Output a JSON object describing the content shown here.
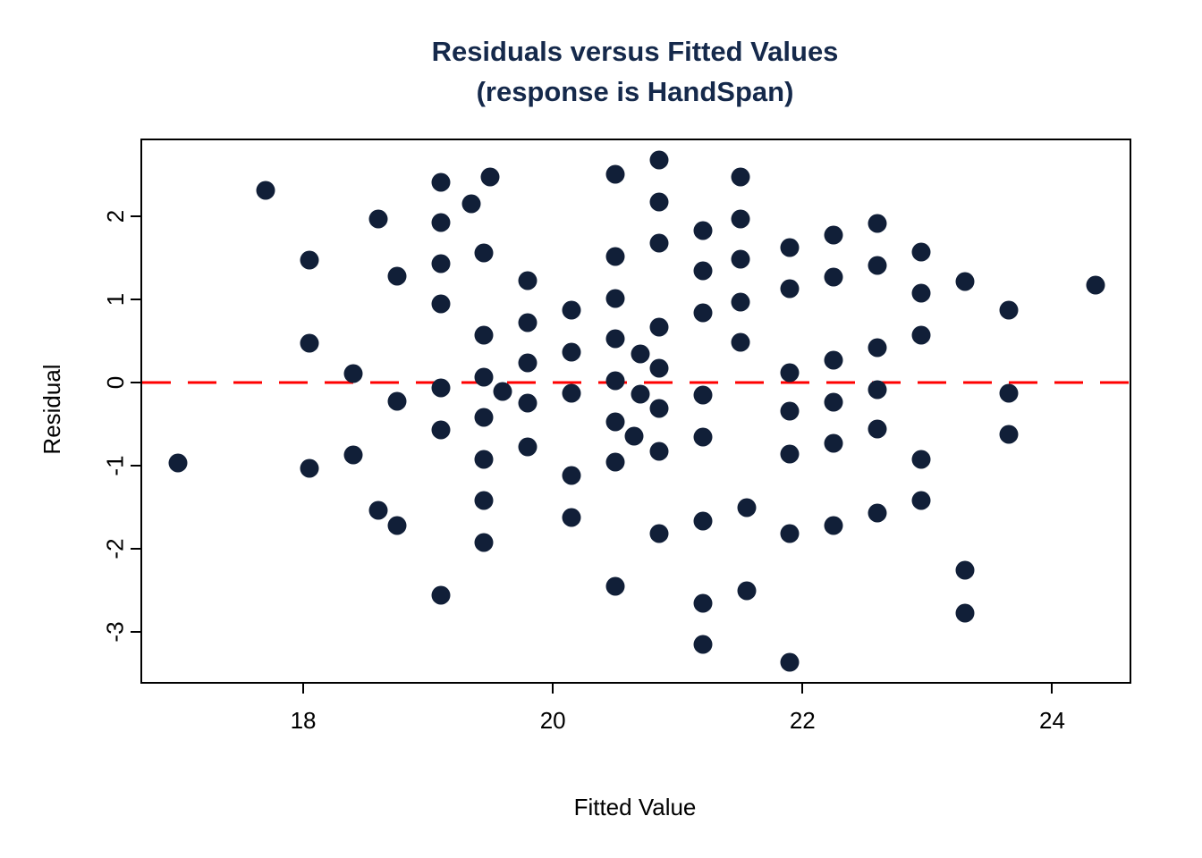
{
  "title": {
    "line1": "Residuals versus Fitted Values",
    "line2": "(response is HandSpan)"
  },
  "axes": {
    "xlabel": "Fitted Value",
    "ylabel": "Residual"
  },
  "colors": {
    "point": "#111f38",
    "title": "#15294b",
    "zero_line": "#ff0000",
    "axis": "#000000",
    "background": "#ffffff"
  },
  "chart_data": {
    "type": "scatter",
    "title": "Residuals versus Fitted Values",
    "subtitle": "(response is HandSpan)",
    "xlabel": "Fitted Value",
    "ylabel": "Residual",
    "xlim": [
      16.71,
      24.62
    ],
    "ylim": [
      -3.6,
      2.91
    ],
    "x_ticks": [
      "18",
      "20",
      "22",
      "24"
    ],
    "x_tick_values": [
      18,
      20,
      22,
      24
    ],
    "y_ticks": [
      "2",
      "1",
      "0",
      "-1",
      "-2",
      "-3"
    ],
    "y_tick_values": [
      2,
      1,
      0,
      -1,
      -2,
      -3
    ],
    "grid": false,
    "legend": null,
    "reference_line": {
      "y": 0,
      "style": "dashed",
      "color": "#ff0000"
    },
    "points": [
      [
        17.0,
        -0.97
      ],
      [
        17.7,
        2.31
      ],
      [
        18.05,
        1.47
      ],
      [
        18.05,
        0.47
      ],
      [
        18.05,
        -1.03
      ],
      [
        18.4,
        0.11
      ],
      [
        18.4,
        -0.87
      ],
      [
        18.6,
        1.96
      ],
      [
        18.6,
        -1.54
      ],
      [
        18.75,
        1.28
      ],
      [
        18.75,
        -0.23
      ],
      [
        18.75,
        -1.72
      ],
      [
        19.1,
        2.41
      ],
      [
        19.1,
        1.92
      ],
      [
        19.1,
        1.43
      ],
      [
        19.1,
        0.94
      ],
      [
        19.1,
        -0.07
      ],
      [
        19.1,
        -0.57
      ],
      [
        19.1,
        -2.56
      ],
      [
        19.35,
        2.15
      ],
      [
        19.45,
        1.56
      ],
      [
        19.45,
        0.57
      ],
      [
        19.45,
        0.06
      ],
      [
        19.45,
        -0.42
      ],
      [
        19.45,
        -0.92
      ],
      [
        19.45,
        -1.42
      ],
      [
        19.45,
        -1.92
      ],
      [
        19.5,
        2.47
      ],
      [
        19.6,
        -0.11
      ],
      [
        19.8,
        1.22
      ],
      [
        19.8,
        0.72
      ],
      [
        19.8,
        0.24
      ],
      [
        19.8,
        -0.25
      ],
      [
        19.8,
        -0.77
      ],
      [
        20.15,
        0.87
      ],
      [
        20.15,
        0.36
      ],
      [
        20.15,
        -0.13
      ],
      [
        20.15,
        -1.12
      ],
      [
        20.15,
        -1.62
      ],
      [
        20.5,
        2.5
      ],
      [
        20.5,
        1.51
      ],
      [
        20.5,
        1.01
      ],
      [
        20.5,
        0.52
      ],
      [
        20.5,
        0.02
      ],
      [
        20.5,
        -0.47
      ],
      [
        20.5,
        -0.96
      ],
      [
        20.5,
        -2.45
      ],
      [
        20.65,
        -0.65
      ],
      [
        20.7,
        0.34
      ],
      [
        20.7,
        -0.14
      ],
      [
        20.85,
        2.67
      ],
      [
        20.85,
        2.17
      ],
      [
        20.85,
        1.67
      ],
      [
        20.85,
        0.67
      ],
      [
        20.85,
        0.17
      ],
      [
        20.85,
        -0.31
      ],
      [
        20.85,
        -0.83
      ],
      [
        20.85,
        -1.82
      ],
      [
        21.2,
        1.82
      ],
      [
        21.2,
        1.34
      ],
      [
        21.2,
        0.84
      ],
      [
        21.2,
        -0.15
      ],
      [
        21.2,
        -0.66
      ],
      [
        21.2,
        -1.67
      ],
      [
        21.2,
        -2.66
      ],
      [
        21.2,
        -3.15
      ],
      [
        21.5,
        2.47
      ],
      [
        21.5,
        1.97
      ],
      [
        21.5,
        1.48
      ],
      [
        21.5,
        0.97
      ],
      [
        21.5,
        0.48
      ],
      [
        21.55,
        -1.51
      ],
      [
        21.55,
        -2.5
      ],
      [
        21.9,
        1.62
      ],
      [
        21.9,
        1.13
      ],
      [
        21.9,
        0.12
      ],
      [
        21.9,
        -0.35
      ],
      [
        21.9,
        -0.86
      ],
      [
        21.9,
        -1.82
      ],
      [
        21.9,
        -3.36
      ],
      [
        22.25,
        1.77
      ],
      [
        22.25,
        1.27
      ],
      [
        22.25,
        0.27
      ],
      [
        22.25,
        -0.24
      ],
      [
        22.25,
        -0.73
      ],
      [
        22.25,
        -1.72
      ],
      [
        22.6,
        1.91
      ],
      [
        22.6,
        1.41
      ],
      [
        22.6,
        0.42
      ],
      [
        22.6,
        -0.09
      ],
      [
        22.6,
        -0.56
      ],
      [
        22.6,
        -1.57
      ],
      [
        22.95,
        1.57
      ],
      [
        22.95,
        1.07
      ],
      [
        22.95,
        0.57
      ],
      [
        22.95,
        -0.92
      ],
      [
        22.95,
        -1.42
      ],
      [
        23.3,
        1.21
      ],
      [
        23.3,
        -2.26
      ],
      [
        23.3,
        -2.77
      ],
      [
        23.65,
        0.87
      ],
      [
        23.65,
        -0.13
      ],
      [
        23.65,
        -0.62
      ],
      [
        24.35,
        1.17
      ]
    ]
  }
}
